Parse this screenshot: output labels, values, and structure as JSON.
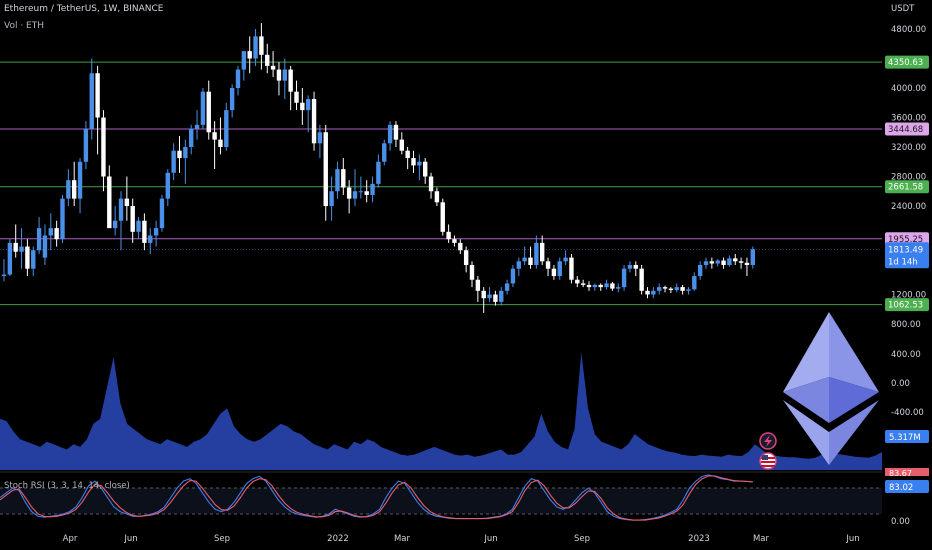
{
  "header": {
    "title": "Ethereum / TetherUS, 1W, BINANCE",
    "volume_label": "Vol · ETH",
    "stoch_label": "Stoch RSI (3, 3, 14, 14, close)"
  },
  "axis": {
    "unit": "USDT"
  },
  "countdown": "1d 14h",
  "colors": {
    "background": "#000000",
    "up_candle": "#4a90e8",
    "down_candle": "#ffffff",
    "support_line": "#4caf50",
    "resistance_line": "#c06ad8",
    "volume_fill": "#2642a8",
    "volume_fill_light": "#3556c8",
    "stoch_k": "#3d7df0",
    "stoch_d": "#e85d6a",
    "price_tag": "#3a7ff0",
    "green_tag": "#4caf50",
    "pink_tag": "#dda5ea",
    "eth_logo_light": "#8a95e8",
    "eth_logo_dark": "#5f6bd6"
  },
  "icons": [
    "lightning-icon",
    "us-flag-icon",
    "ethereum-logo"
  ],
  "chart_data": [
    {
      "type": "candlestick",
      "title": "Ethereum / TetherUS, 1W, BINANCE",
      "x_ticks": [
        "Apr",
        "Jun",
        "Sep",
        "2022",
        "Mar",
        "Jun",
        "Sep",
        "2023",
        "Mar",
        "Jun"
      ],
      "y_ticks": [
        "4800.00",
        "4000.00",
        "3600.00",
        "3200.00",
        "2800.00",
        "2400.00",
        "1200.00",
        "800.00"
      ],
      "ylim": [
        800,
        4850
      ],
      "horizontal_levels": [
        {
          "value": 4350.63,
          "label": "4350.63",
          "style": "support"
        },
        {
          "value": 3444.68,
          "label": "3444.68",
          "style": "resistance"
        },
        {
          "value": 2661.58,
          "label": "2661.58",
          "style": "support"
        },
        {
          "value": 1955.25,
          "label": "1955.25",
          "style": "resistance"
        },
        {
          "value": 1062.53,
          "label": "1062.53",
          "style": "support"
        }
      ],
      "last_price": {
        "value": 1813.49,
        "label": "1813.49"
      },
      "candles": [
        [
          1450,
          1680,
          1380,
          1470
        ],
        [
          1470,
          1950,
          1450,
          1900
        ],
        [
          1900,
          2150,
          1700,
          1780
        ],
        [
          1780,
          2100,
          1550,
          1850
        ],
        [
          1850,
          1950,
          1450,
          1550
        ],
        [
          1550,
          1850,
          1450,
          1800
        ],
        [
          1800,
          2250,
          1750,
          2100
        ],
        [
          1700,
          2150,
          1600,
          2000
        ],
        [
          2000,
          2300,
          1800,
          2100
        ],
        [
          2100,
          2200,
          1850,
          1950
        ],
        [
          1950,
          2550,
          1900,
          2500
        ],
        [
          2500,
          2900,
          2400,
          2750
        ],
        [
          2750,
          3000,
          2400,
          2500
        ],
        [
          2500,
          3050,
          2300,
          3000
        ],
        [
          3000,
          3550,
          2900,
          3450
        ],
        [
          3450,
          4400,
          3300,
          4200
        ],
        [
          4200,
          4300,
          3100,
          3600
        ],
        [
          3600,
          3700,
          2600,
          2800
        ],
        [
          2800,
          2950,
          2100,
          2100
        ],
        [
          2100,
          2400,
          2000,
          2200
        ],
        [
          2200,
          2600,
          1800,
          2500
        ],
        [
          2500,
          2800,
          2200,
          2400
        ],
        [
          2400,
          2500,
          1900,
          2050
        ],
        [
          2050,
          2250,
          1950,
          2200
        ],
        [
          2200,
          2300,
          1800,
          1900
        ],
        [
          1900,
          2100,
          1750,
          2000
        ],
        [
          2000,
          2200,
          1850,
          2100
        ],
        [
          2100,
          2550,
          2050,
          2500
        ],
        [
          2500,
          2900,
          2400,
          2850
        ],
        [
          2850,
          3250,
          2750,
          3150
        ],
        [
          3150,
          3350,
          2850,
          3050
        ],
        [
          3050,
          3300,
          2700,
          3200
        ],
        [
          3200,
          3500,
          3100,
          3450
        ],
        [
          3450,
          3700,
          3300,
          3500
        ],
        [
          3500,
          4000,
          3450,
          3950
        ],
        [
          3950,
          4100,
          3300,
          3400
        ],
        [
          3400,
          3550,
          2900,
          3300
        ],
        [
          3300,
          3600,
          3100,
          3200
        ],
        [
          3200,
          3800,
          3150,
          3700
        ],
        [
          3700,
          4050,
          3600,
          4000
        ],
        [
          4000,
          4300,
          3900,
          4250
        ],
        [
          4250,
          4500,
          4100,
          4500
        ],
        [
          4500,
          4700,
          4200,
          4400
        ],
        [
          4400,
          4800,
          4300,
          4700
        ],
        [
          4700,
          4880,
          4250,
          4450
        ],
        [
          4450,
          4600,
          4200,
          4300
        ],
        [
          4300,
          4500,
          4150,
          4250
        ],
        [
          4250,
          4350,
          3900,
          4100
        ],
        [
          4100,
          4400,
          3850,
          4250
        ],
        [
          4250,
          4300,
          3700,
          3950
        ],
        [
          3950,
          4100,
          3700,
          3800
        ],
        [
          3800,
          4000,
          3500,
          3700
        ],
        [
          3700,
          3900,
          3400,
          3850
        ],
        [
          3850,
          3950,
          3150,
          3250
        ],
        [
          3250,
          3500,
          3050,
          3400
        ],
        [
          3400,
          3500,
          2200,
          2400
        ],
        [
          2400,
          2800,
          2200,
          2600
        ],
        [
          2600,
          3000,
          2500,
          2900
        ],
        [
          2900,
          3050,
          2550,
          2650
        ],
        [
          2650,
          2750,
          2300,
          2500
        ],
        [
          2500,
          2900,
          2400,
          2600
        ],
        [
          2600,
          2800,
          2500,
          2600
        ],
        [
          2600,
          2750,
          2450,
          2550
        ],
        [
          2550,
          2800,
          2450,
          2700
        ],
        [
          2700,
          3100,
          2650,
          3000
        ],
        [
          3000,
          3300,
          2950,
          3250
        ],
        [
          3250,
          3550,
          3150,
          3500
        ],
        [
          3500,
          3550,
          3200,
          3300
        ],
        [
          3300,
          3400,
          3100,
          3150
        ],
        [
          3150,
          3200,
          2900,
          3050
        ],
        [
          3050,
          3150,
          2850,
          2950
        ],
        [
          2950,
          3100,
          2750,
          3000
        ],
        [
          3000,
          3050,
          2700,
          2800
        ],
        [
          2800,
          2850,
          2500,
          2600
        ],
        [
          2600,
          2650,
          2400,
          2450
        ],
        [
          2450,
          2500,
          2000,
          2050
        ],
        [
          2050,
          2150,
          1900,
          1950
        ],
        [
          1950,
          2000,
          1850,
          1900
        ],
        [
          1900,
          1950,
          1750,
          1800
        ],
        [
          1800,
          1850,
          1500,
          1600
        ],
        [
          1600,
          1650,
          1300,
          1400
        ],
        [
          1400,
          1450,
          1100,
          1250
        ],
        [
          1250,
          1300,
          950,
          1150
        ],
        [
          1150,
          1300,
          1100,
          1200
        ],
        [
          1200,
          1250,
          1050,
          1100
        ],
        [
          1100,
          1300,
          1050,
          1250
        ],
        [
          1250,
          1400,
          1200,
          1350
        ],
        [
          1350,
          1600,
          1300,
          1550
        ],
        [
          1550,
          1700,
          1450,
          1650
        ],
        [
          1650,
          1850,
          1600,
          1700
        ],
        [
          1700,
          1850,
          1550,
          1600
        ],
        [
          1600,
          2000,
          1550,
          1900
        ],
        [
          1900,
          2000,
          1600,
          1650
        ],
        [
          1650,
          1700,
          1450,
          1550
        ],
        [
          1550,
          1600,
          1400,
          1450
        ],
        [
          1450,
          1700,
          1400,
          1650
        ],
        [
          1650,
          1800,
          1600,
          1700
        ],
        [
          1700,
          1750,
          1350,
          1400
        ],
        [
          1400,
          1450,
          1300,
          1350
        ],
        [
          1350,
          1400,
          1300,
          1330
        ],
        [
          1330,
          1380,
          1250,
          1300
        ],
        [
          1300,
          1350,
          1250,
          1330
        ],
        [
          1330,
          1350,
          1250,
          1300
        ],
        [
          1300,
          1400,
          1270,
          1350
        ],
        [
          1350,
          1370,
          1250,
          1280
        ],
        [
          1280,
          1350,
          1230,
          1300
        ],
        [
          1300,
          1600,
          1250,
          1550
        ],
        [
          1550,
          1650,
          1500,
          1600
        ],
        [
          1600,
          1650,
          1450,
          1550
        ],
        [
          1550,
          1600,
          1200,
          1250
        ],
        [
          1250,
          1300,
          1150,
          1200
        ],
        [
          1200,
          1300,
          1150,
          1250
        ],
        [
          1250,
          1350,
          1200,
          1300
        ],
        [
          1300,
          1320,
          1230,
          1280
        ],
        [
          1280,
          1300,
          1220,
          1260
        ],
        [
          1260,
          1350,
          1230,
          1300
        ],
        [
          1300,
          1330,
          1200,
          1250
        ],
        [
          1250,
          1300,
          1200,
          1270
        ],
        [
          1270,
          1500,
          1250,
          1450
        ],
        [
          1450,
          1650,
          1400,
          1600
        ],
        [
          1600,
          1700,
          1550,
          1650
        ],
        [
          1650,
          1700,
          1550,
          1620
        ],
        [
          1620,
          1680,
          1580,
          1660
        ],
        [
          1660,
          1700,
          1550,
          1600
        ],
        [
          1600,
          1730,
          1580,
          1690
        ],
        [
          1690,
          1750,
          1600,
          1650
        ],
        [
          1650,
          1700,
          1550,
          1630
        ],
        [
          1630,
          1700,
          1450,
          1600
        ],
        [
          1600,
          1850,
          1550,
          1813.49
        ]
      ]
    },
    {
      "type": "area",
      "title": "Vol · ETH",
      "y_ticks": [
        "400.00",
        "0.00",
        "-400.00"
      ],
      "last_value_label": "5.317M",
      "values": [
        1.0,
        0.95,
        0.75,
        0.6,
        0.55,
        0.5,
        0.45,
        0.55,
        0.5,
        0.45,
        0.4,
        0.5,
        0.45,
        0.6,
        0.9,
        1.0,
        1.6,
        2.2,
        1.3,
        0.9,
        0.8,
        0.7,
        0.6,
        0.55,
        0.5,
        0.6,
        0.55,
        0.5,
        0.45,
        0.55,
        0.6,
        0.7,
        0.9,
        1.1,
        1.2,
        0.85,
        0.7,
        0.6,
        0.55,
        0.6,
        0.7,
        0.8,
        0.9,
        0.85,
        0.75,
        0.7,
        0.6,
        0.5,
        0.45,
        0.4,
        0.5,
        0.45,
        0.4,
        0.55,
        0.5,
        0.6,
        0.55,
        0.45,
        0.4,
        0.35,
        0.3,
        0.28,
        0.3,
        0.35,
        0.4,
        0.45,
        0.4,
        0.35,
        0.3,
        0.28,
        0.3,
        0.26,
        0.28,
        0.32,
        0.36,
        0.4,
        0.3,
        0.3,
        0.35,
        0.5,
        0.65,
        1.1,
        0.75,
        0.55,
        0.45,
        0.4,
        0.8,
        2.3,
        1.2,
        0.7,
        0.55,
        0.5,
        0.45,
        0.4,
        0.5,
        0.7,
        0.6,
        0.5,
        0.45,
        0.4,
        0.36,
        0.34,
        0.3,
        0.28,
        0.27,
        0.3,
        0.28,
        0.27,
        0.26,
        0.3,
        0.28,
        0.27,
        0.35,
        0.5,
        0.4,
        0.3,
        0.28,
        0.26,
        0.25,
        0.25,
        0.23,
        0.22,
        0.24,
        0.3,
        0.35,
        0.32,
        0.3,
        0.28,
        0.26,
        0.25,
        0.24,
        0.28,
        0.35
      ]
    },
    {
      "type": "line",
      "title": "Stoch RSI (3, 3, 14, 14, close)",
      "y_ticks": [
        "83.67",
        "83.02",
        "0.00"
      ],
      "ylim": [
        0,
        100
      ],
      "series": [
        {
          "values": [
            50,
            60,
            70,
            65,
            40,
            20,
            10,
            8,
            10,
            12,
            15,
            20,
            30,
            50,
            75,
            85,
            70,
            50,
            30,
            20,
            15,
            10,
            10,
            12,
            15,
            20,
            30,
            50,
            70,
            85,
            90,
            80,
            60,
            40,
            25,
            20,
            25,
            40,
            60,
            80,
            90,
            95,
            85,
            65,
            45,
            30,
            20,
            15,
            12,
            10,
            8,
            10,
            15,
            25,
            20,
            15,
            10,
            8,
            10,
            15,
            25,
            50,
            70,
            85,
            80,
            60,
            40,
            25,
            15,
            10,
            8,
            6,
            5,
            5,
            5,
            5,
            5,
            6,
            8,
            10,
            15,
            25,
            50,
            75,
            90,
            85,
            65,
            45,
            30,
            25,
            30,
            45,
            60,
            70,
            60,
            40,
            20,
            10,
            5,
            3,
            2,
            2,
            3,
            5,
            8,
            12,
            18,
            25,
            45,
            70,
            85,
            95,
            98,
            95,
            90,
            88,
            85,
            85,
            84,
            83.67
          ]
        },
        {
          "values": [
            45,
            55,
            65,
            68,
            50,
            30,
            15,
            10,
            9,
            10,
            13,
            17,
            25,
            40,
            62,
            78,
            75,
            60,
            42,
            28,
            18,
            12,
            10,
            11,
            13,
            17,
            25,
            40,
            58,
            75,
            86,
            85,
            70,
            52,
            35,
            24,
            23,
            32,
            50,
            70,
            84,
            90,
            88,
            75,
            55,
            38,
            26,
            18,
            14,
            11,
            9,
            9,
            12,
            20,
            21,
            17,
            12,
            9,
            9,
            12,
            20,
            38,
            60,
            77,
            82,
            70,
            50,
            33,
            20,
            13,
            9,
            7,
            5,
            5,
            5,
            5,
            5,
            5,
            7,
            9,
            13,
            20,
            40,
            65,
            82,
            87,
            75,
            55,
            38,
            28,
            28,
            38,
            52,
            64,
            63,
            48,
            28,
            15,
            7,
            4,
            2,
            2,
            2,
            4,
            6,
            10,
            15,
            21,
            35,
            58,
            78,
            90,
            96,
            96,
            92,
            89,
            86,
            85,
            84.5,
            83.02
          ]
        }
      ]
    }
  ]
}
